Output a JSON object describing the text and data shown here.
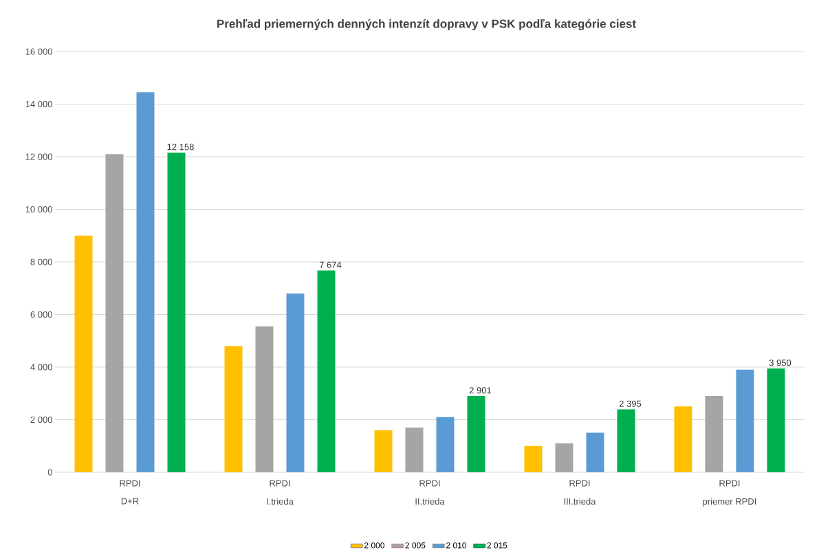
{
  "chart_data": {
    "type": "bar",
    "title": "Prehľad priemerných denných intenzít dopravy v PSK podľa kategórie ciest",
    "categories": [
      "D+R",
      "I.trieda",
      "II.trieda",
      "III.trieda",
      "priemer RPDI"
    ],
    "series": [
      {
        "name": "2 000",
        "color": "#ffc000",
        "values": [
          9000,
          4800,
          1600,
          1000,
          2500
        ]
      },
      {
        "name": "2 005",
        "color": "#a5a5a5",
        "values": [
          12100,
          5550,
          1700,
          1100,
          2900
        ]
      },
      {
        "name": "2 010",
        "color": "#5b9bd5",
        "values": [
          14450,
          6800,
          2100,
          1500,
          3900
        ]
      },
      {
        "name": "2 015",
        "color": "#00b050",
        "values": [
          12158,
          7674,
          2901,
          2395,
          3950
        ],
        "value_labels": [
          "12 158",
          "7 674",
          "2 901",
          "2 395",
          "3 950"
        ]
      }
    ],
    "ylim": [
      0,
      16000
    ],
    "yticks": [
      0,
      {
        "value": 2000,
        "label": "2 000"
      },
      {
        "value": 4000,
        "label": "4 000"
      },
      {
        "value": 6000,
        "label": "6 000"
      },
      {
        "value": 8000,
        "label": "8 000"
      },
      {
        "value": 10000,
        "label": "10 000"
      },
      {
        "value": 12000,
        "label": "12 000"
      },
      {
        "value": 14000,
        "label": "14 000"
      },
      {
        "value": 16000,
        "label": "16 000"
      }
    ],
    "annotations": [
      "RPDI",
      "RPDI",
      "RPDI",
      "RPDI",
      "RPDI"
    ],
    "grid": "y",
    "legend": "bottom"
  }
}
